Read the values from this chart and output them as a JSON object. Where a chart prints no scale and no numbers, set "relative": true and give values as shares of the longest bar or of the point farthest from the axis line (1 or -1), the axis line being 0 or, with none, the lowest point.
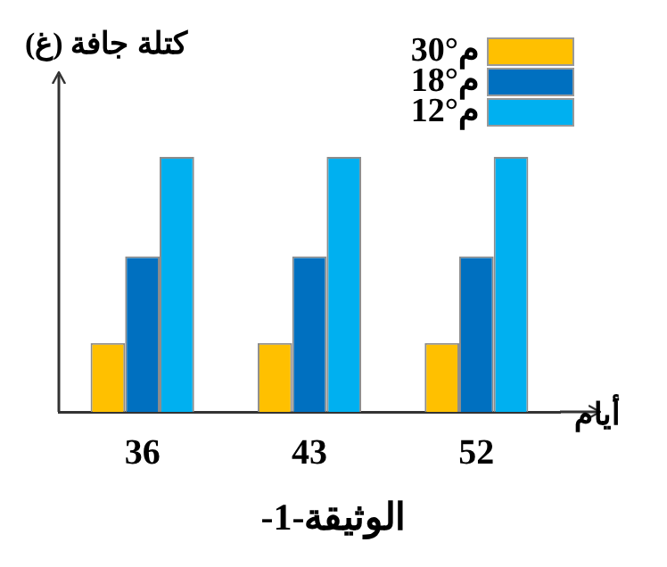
{
  "chart_data": {
    "type": "bar",
    "title": "الوثيقة-1-",
    "ylabel": "كتلة جافة (غ)",
    "xlabel": "أيام",
    "categories": [
      "36",
      "43",
      "52"
    ],
    "relative": true,
    "legend": "top right",
    "grid": false,
    "series": [
      {
        "name": "30°م",
        "color": "#ffc000",
        "values": [
          0.27,
          0.27,
          0.27
        ]
      },
      {
        "name": "18°م",
        "color": "#0070c0",
        "values": [
          0.61,
          0.61,
          0.61
        ]
      },
      {
        "name": "12°م",
        "color": "#00b0f0",
        "values": [
          1,
          1,
          1
        ]
      }
    ]
  }
}
